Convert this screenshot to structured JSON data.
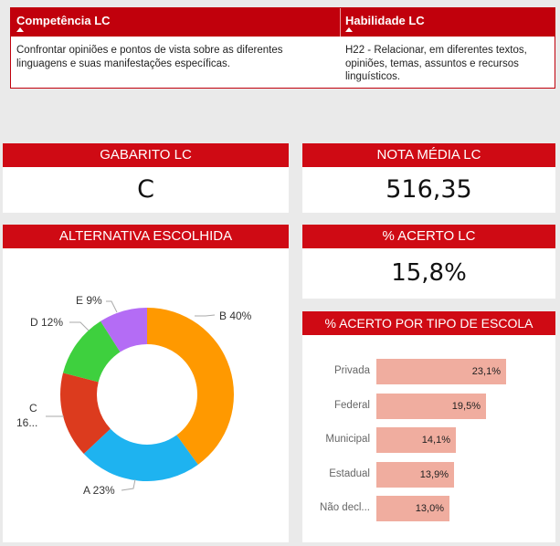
{
  "table": {
    "col1_header": "Competência LC",
    "col2_header": "Habilidade LC",
    "col1_value": "Confrontar opiniões e pontos de vista sobre as diferentes linguagens e suas manifestações específicas.",
    "col2_value": "H22 - Relacionar, em diferentes textos, opiniões, temas, assuntos e recursos linguísticos."
  },
  "gabarito": {
    "title": "GABARITO LC",
    "value": "C"
  },
  "nota": {
    "title": "NOTA MÉDIA LC",
    "value": "516,35"
  },
  "acerto": {
    "title": "% ACERTO LC",
    "value": "15,8%"
  },
  "alternativa": {
    "title": "ALTERNATIVA ESCOLHIDA",
    "labels": {
      "B": "B 40%",
      "A": "A 23%",
      "C1": "C",
      "C2": "16...",
      "D": "D 12%",
      "E": "E 9%"
    }
  },
  "escola": {
    "title": "% ACERTO POR TIPO DE ESCOLA",
    "rows": [
      {
        "label": "Privada",
        "value_label": "23,1%"
      },
      {
        "label": "Federal",
        "value_label": "19,5%"
      },
      {
        "label": "Municipal",
        "value_label": "14,1%"
      },
      {
        "label": "Estadual",
        "value_label": "13,9%"
      },
      {
        "label": "Não decl...",
        "value_label": "13,0%"
      }
    ]
  },
  "colors": {
    "header_red": "#cf0a14",
    "table_red": "#c1000c",
    "bar": "#f0ad9f"
  },
  "chart_data": [
    {
      "type": "pie",
      "title": "ALTERNATIVA ESCOLHIDA",
      "categories": [
        "B",
        "A",
        "C",
        "D",
        "E"
      ],
      "values": [
        40,
        23,
        16,
        12,
        9
      ],
      "colors": [
        "#ff9900",
        "#1eb3f0",
        "#dc3b1e",
        "#3ed03e",
        "#b46cf5"
      ]
    },
    {
      "type": "bar",
      "title": "% ACERTO POR TIPO DE ESCOLA",
      "categories": [
        "Privada",
        "Federal",
        "Municipal",
        "Estadual",
        "Não decl..."
      ],
      "values": [
        23.1,
        19.5,
        14.1,
        13.9,
        13.0
      ]
    }
  ]
}
